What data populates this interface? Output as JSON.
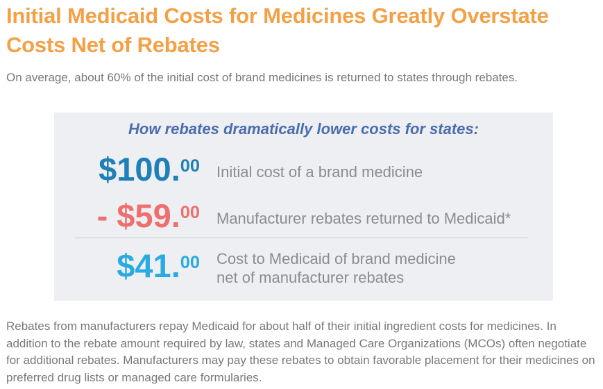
{
  "header": {
    "title_line1": "Initial Medicaid Costs for Medicines Greatly Overstate",
    "title_line2": "Costs Net of Rebates",
    "subtitle": "On average, about 60% of the initial cost of brand medicines is returned to states through rebates."
  },
  "panel": {
    "heading": "How rebates dramatically lower costs for states:",
    "rows": [
      {
        "amount": "$100.",
        "cents": "00",
        "label_line1": "Initial cost of a brand medicine",
        "label_line2": ""
      },
      {
        "amount": "- $59.",
        "cents": "00",
        "label_line1": "Manufacturer rebates returned to Medicaid*",
        "label_line2": ""
      },
      {
        "amount": "$41.",
        "cents": "00",
        "label_line1": "Cost to Medicaid of brand medicine",
        "label_line2": "net of manufacturer rebates"
      }
    ]
  },
  "footer": {
    "paragraph": "Rebates from manufacturers repay Medicaid for about half of their initial ingredient costs for medicines. In addition to the rebate amount required by law, states and Managed Care Organizations (MCOs) often negotiate for additional rebates. Manufacturers may pay these rebates to obtain favorable placement for their medicines on preferred drug lists or managed care formularies."
  },
  "colors": {
    "title_orange": "#F4A045",
    "heading_blue": "#4A6DAE",
    "initial_cost_blue": "#1F80B8",
    "rebate_red": "#EE6F6D",
    "net_cost_blue": "#29ABE2",
    "body_gray": "#77787B",
    "label_gray": "#8A8C8F",
    "panel_bg": "#EDEFF2",
    "divider_gray": "#C7C9CC"
  }
}
